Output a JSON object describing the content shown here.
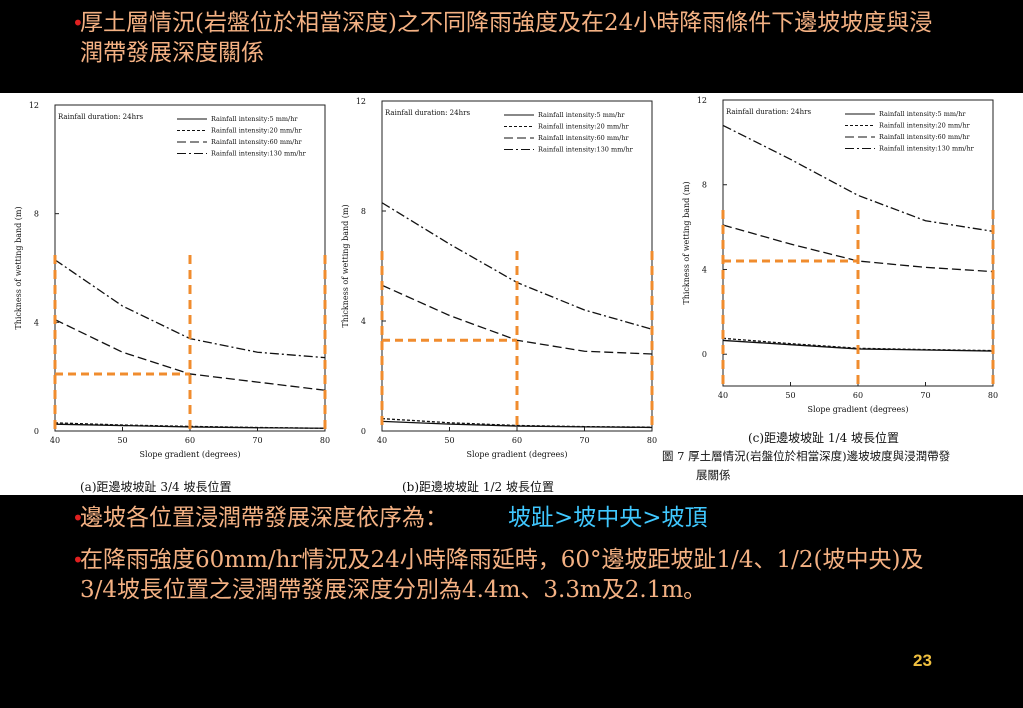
{
  "header": {
    "bullet1": "厚土層情況(岩盤位於相當深度)之不同降雨強度及在24小時降雨條件下邊坡坡度與浸潤帶發展深度關係"
  },
  "bullets": {
    "bullet2_text": "邊坡各位置浸潤帶發展深度依序為：",
    "bullet2_highlight": "坡趾>坡中央>坡頂",
    "bullet3": "在降雨強度60mm/hr情況及24小時降雨延時，60°邊坡距坡趾1/4、1/2(坡中央)及3/4坡長位置之浸潤帶發展深度分別為4.4m、3.3m及2.1m。"
  },
  "page_number": "23",
  "figure_caption": "圖 7 厚土層情況(岩盤位於相當深度)邊坡坡度與浸潤帶發展關係",
  "colors": {
    "background": "#000000",
    "text": "#f4b183",
    "bullet": "#e02020",
    "highlight": "#40c8ff",
    "annotation": "#f08c2e"
  },
  "chart_data": [
    {
      "type": "line",
      "caption": "(a)距邊坡坡趾 3/4 坡長位置",
      "title": "Rainfall duration: 24hrs",
      "xlabel": "Slope gradient (degrees)",
      "ylabel": "Thickness of wetting band (m)",
      "xlim": [
        40,
        80
      ],
      "ylim": [
        0,
        12
      ],
      "xticks": [
        40,
        50,
        60,
        70,
        80
      ],
      "yticks": [
        0,
        4,
        8,
        12
      ],
      "x": [
        40,
        50,
        60,
        70,
        80
      ],
      "series": [
        {
          "name": "Rainfall intensity:5 mm/hr",
          "values": [
            0.25,
            0.2,
            0.15,
            0.12,
            0.1
          ]
        },
        {
          "name": "Rainfall intensity:20 mm/hr",
          "values": [
            0.3,
            0.22,
            0.17,
            0.13,
            0.1
          ]
        },
        {
          "name": "Rainfall intensity:60 mm/hr",
          "values": [
            4.1,
            2.9,
            2.1,
            1.8,
            1.5
          ]
        },
        {
          "name": "Rainfall intensity:130 mm/hr",
          "values": [
            6.3,
            4.6,
            3.4,
            2.9,
            2.7
          ]
        }
      ],
      "legend": "top-right",
      "annotation_level": 2.1
    },
    {
      "type": "line",
      "caption": "(b)距邊坡坡趾 1/2 坡長位置",
      "title": "Rainfall duration: 24hrs",
      "xlabel": "Slope gradient (degrees)",
      "ylabel": "Thickness of wetting band (m)",
      "xlim": [
        40,
        80
      ],
      "ylim": [
        0,
        12
      ],
      "xticks": [
        40,
        50,
        60,
        70,
        80
      ],
      "yticks": [
        0,
        4,
        8,
        12
      ],
      "x": [
        40,
        50,
        60,
        70,
        80
      ],
      "series": [
        {
          "name": "Rainfall intensity:5 mm/hr",
          "values": [
            0.35,
            0.25,
            0.18,
            0.15,
            0.13
          ]
        },
        {
          "name": "Rainfall intensity:20 mm/hr",
          "values": [
            0.45,
            0.3,
            0.2,
            0.16,
            0.14
          ]
        },
        {
          "name": "Rainfall intensity:60 mm/hr",
          "values": [
            5.3,
            4.2,
            3.3,
            2.9,
            2.8
          ]
        },
        {
          "name": "Rainfall intensity:130 mm/hr",
          "values": [
            8.3,
            6.8,
            5.4,
            4.4,
            3.7
          ]
        }
      ],
      "legend": "top-right",
      "annotation_level": 3.3
    },
    {
      "type": "line",
      "caption": "(c)距邊坡坡趾 1/4 坡長位置",
      "title": "Rainfall duration: 24hrs",
      "xlabel": "Slope gradient (degrees)",
      "ylabel": "Thickness of wetting band (m)",
      "xlim": [
        40,
        80
      ],
      "ylim": [
        -1.5,
        12
      ],
      "xticks": [
        40,
        50,
        60,
        70,
        80
      ],
      "yticks": [
        0,
        4,
        8,
        12
      ],
      "x": [
        40,
        50,
        60,
        70,
        80
      ],
      "series": [
        {
          "name": "Rainfall intensity:5 mm/hr",
          "values": [
            0.65,
            0.45,
            0.25,
            0.2,
            0.15
          ]
        },
        {
          "name": "Rainfall intensity:20 mm/hr",
          "values": [
            0.75,
            0.5,
            0.28,
            0.22,
            0.17
          ]
        },
        {
          "name": "Rainfall intensity:60 mm/hr",
          "values": [
            6.1,
            5.2,
            4.4,
            4.1,
            3.9
          ]
        },
        {
          "name": "Rainfall intensity:130 mm/hr",
          "values": [
            10.8,
            9.2,
            7.5,
            6.3,
            5.8
          ]
        }
      ],
      "legend": "top-right",
      "annotation_level": 4.4
    }
  ]
}
